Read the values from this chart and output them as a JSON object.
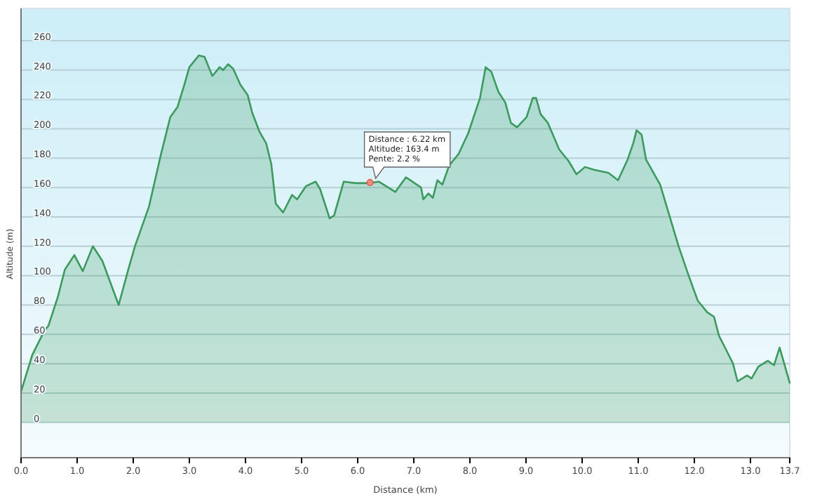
{
  "chart_data": {
    "type": "area",
    "xlabel": "Distance (km)",
    "ylabel": "Altitude (m)",
    "xlim": [
      0,
      13.7
    ],
    "ylim": [
      -24,
      282
    ],
    "xticks": [
      {
        "value": 0,
        "label": "0.0"
      },
      {
        "value": 1,
        "label": "1.0"
      },
      {
        "value": 2,
        "label": "2.0"
      },
      {
        "value": 3,
        "label": "3.0"
      },
      {
        "value": 4,
        "label": "4.0"
      },
      {
        "value": 5,
        "label": "5.0"
      },
      {
        "value": 6,
        "label": "6.0"
      },
      {
        "value": 7,
        "label": "7.0"
      },
      {
        "value": 8,
        "label": "8.0"
      },
      {
        "value": 9,
        "label": "9.0"
      },
      {
        "value": 10,
        "label": "10.0"
      },
      {
        "value": 11,
        "label": "11.0"
      },
      {
        "value": 12,
        "label": "12.0"
      },
      {
        "value": 13,
        "label": "13.0"
      },
      {
        "value": 13.7,
        "label": "13.7"
      }
    ],
    "yticks": [
      0,
      20,
      40,
      60,
      80,
      100,
      120,
      140,
      160,
      180,
      200,
      220,
      240,
      260
    ],
    "grid": "y",
    "marker": "none",
    "line_style": "solid",
    "annotations": [
      {
        "text": "Distance : 6.22 km\nAltitude: 163.4 m\nPente: 2.2 %",
        "x": 6.22,
        "y": 163.4
      }
    ],
    "series": [
      {
        "color": "#3c9a5f",
        "x": [
          0,
          0.2,
          0.41,
          0.49,
          0.66,
          0.78,
          0.95,
          1.1,
          1.28,
          1.45,
          1.74,
          1.91,
          2.03,
          2.28,
          2.49,
          2.66,
          2.79,
          2.91,
          3.0,
          3.17,
          3.27,
          3.41,
          3.54,
          3.6,
          3.69,
          3.78,
          3.91,
          4.04,
          4.12,
          4.25,
          4.37,
          4.46,
          4.54,
          4.67,
          4.83,
          4.92,
          5.08,
          5.25,
          5.33,
          5.5,
          5.58,
          5.75,
          5.96,
          6.21,
          6.38,
          6.67,
          6.86,
          7.13,
          7.17,
          7.26,
          7.34,
          7.42,
          7.51,
          7.63,
          7.8,
          7.97,
          8.18,
          8.28,
          8.38,
          8.51,
          8.63,
          8.73,
          8.84,
          9.01,
          9.12,
          9.18,
          9.26,
          9.39,
          9.59,
          9.76,
          9.9,
          10.05,
          10.22,
          10.47,
          10.64,
          10.81,
          10.91,
          10.97,
          11.06,
          11.14,
          11.39,
          11.72,
          11.89,
          12.06,
          12.23,
          12.35,
          12.44,
          12.56,
          12.69,
          12.77,
          12.94,
          13.02,
          13.14,
          13.31,
          13.42,
          13.52,
          13.64,
          13.7
        ],
        "values": [
          21,
          46,
          62,
          66,
          86,
          104,
          114,
          103,
          120,
          110,
          80,
          104,
          120,
          147,
          182,
          208,
          215,
          230,
          242,
          250,
          249,
          236,
          242,
          240,
          244,
          241,
          230,
          223,
          211,
          198,
          190,
          176,
          149,
          143,
          155,
          152,
          161,
          164,
          159,
          139,
          141,
          164,
          163,
          163,
          164,
          157,
          167,
          160,
          152,
          156,
          153,
          165,
          162,
          175,
          183,
          197,
          221,
          242,
          239,
          225,
          218,
          204,
          201,
          208,
          221,
          221,
          210,
          204,
          186,
          178,
          169,
          174,
          172,
          170,
          165,
          179,
          190,
          199,
          196,
          179,
          162,
          120,
          101,
          83,
          75,
          72,
          59,
          50,
          40,
          28,
          32,
          30,
          38,
          42,
          39,
          51,
          35,
          27
        ]
      }
    ]
  }
}
